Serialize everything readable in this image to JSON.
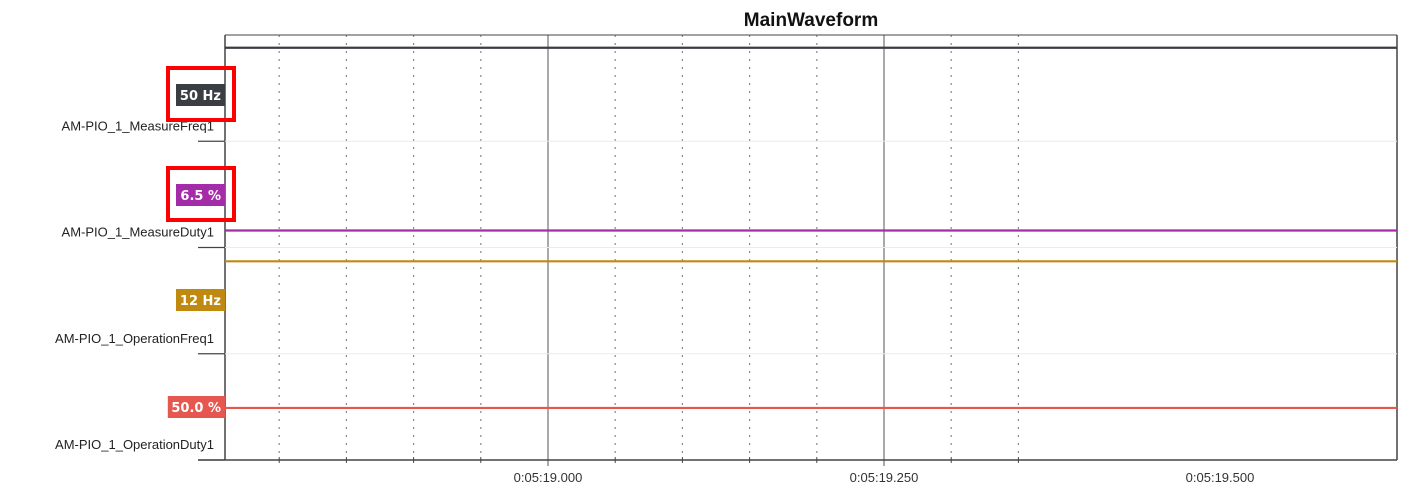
{
  "chart_data": {
    "type": "line",
    "title": "MainWaveform",
    "x_tick_labels": [
      "0:05:19.000",
      "0:05:19.250",
      "0:05:19.500"
    ],
    "grid": true,
    "series": [
      {
        "name": "AM-PIO_1_MeasureFreq1",
        "value_label": "50 Hz",
        "value": 50,
        "unit": "Hz",
        "color": "#3a3d42",
        "highlighted": true
      },
      {
        "name": "AM-PIO_1_MeasureDuty1",
        "value_label": "6.5 %",
        "value": 6.5,
        "unit": "%",
        "color": "#a52ca8",
        "highlighted": true
      },
      {
        "name": "AM-PIO_1_OperationFreq1",
        "value_label": "12 Hz",
        "value": 12,
        "unit": "Hz",
        "color": "#c08a10",
        "highlighted": false
      },
      {
        "name": "AM-PIO_1_OperationDuty1",
        "value_label": "50.0 %",
        "value": 50.0,
        "unit": "%",
        "color": "#e5574f",
        "highlighted": false
      }
    ],
    "highlight_color": "#ff0000"
  }
}
